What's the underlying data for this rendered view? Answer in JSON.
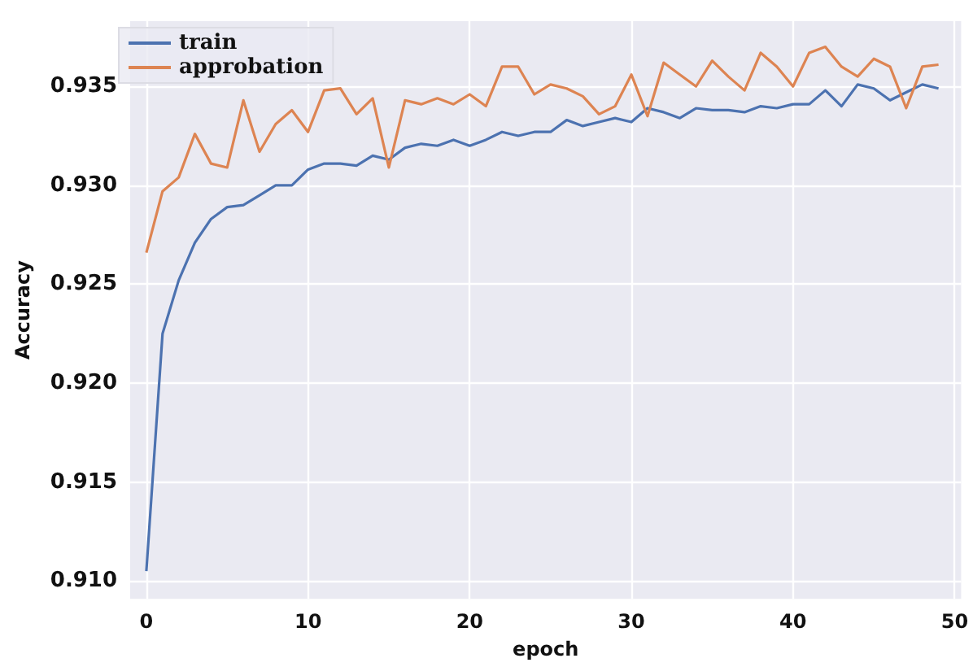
{
  "chart_data": {
    "type": "line",
    "xlabel": "epoch",
    "ylabel": "Accuracy",
    "x": [
      0,
      1,
      2,
      3,
      4,
      5,
      6,
      7,
      8,
      9,
      10,
      11,
      12,
      13,
      14,
      15,
      16,
      17,
      18,
      19,
      20,
      21,
      22,
      23,
      24,
      25,
      26,
      27,
      28,
      29,
      30,
      31,
      32,
      33,
      34,
      35,
      36,
      37,
      38,
      39,
      40,
      41,
      42,
      43,
      44,
      45,
      46,
      47,
      48,
      49
    ],
    "series": [
      {
        "name": "train",
        "color": "#4c72b0",
        "values": [
          0.9105,
          0.9225,
          0.9252,
          0.9271,
          0.9283,
          0.9289,
          0.929,
          0.9295,
          0.93,
          0.93,
          0.9308,
          0.9311,
          0.9311,
          0.931,
          0.9315,
          0.9313,
          0.9319,
          0.9321,
          0.932,
          0.9323,
          0.932,
          0.9323,
          0.9327,
          0.9325,
          0.9327,
          0.9327,
          0.9333,
          0.933,
          0.9332,
          0.9334,
          0.9332,
          0.9339,
          0.9337,
          0.9334,
          0.9339,
          0.9338,
          0.9338,
          0.9337,
          0.934,
          0.9339,
          0.9341,
          0.9341,
          0.9348,
          0.934,
          0.9351,
          0.9349,
          0.9343,
          0.9347,
          0.9351,
          0.9349
        ]
      },
      {
        "name": "approbation",
        "color": "#dd8452",
        "values": [
          0.9266,
          0.9297,
          0.9304,
          0.9326,
          0.9311,
          0.9309,
          0.9343,
          0.9317,
          0.9331,
          0.9338,
          0.9327,
          0.9348,
          0.9349,
          0.9336,
          0.9344,
          0.9309,
          0.9343,
          0.9341,
          0.9344,
          0.9341,
          0.9346,
          0.934,
          0.936,
          0.936,
          0.9346,
          0.9351,
          0.9349,
          0.9345,
          0.9336,
          0.934,
          0.9356,
          0.9335,
          0.9362,
          0.9356,
          0.935,
          0.9363,
          0.9355,
          0.9348,
          0.9367,
          0.936,
          0.935,
          0.9367,
          0.937,
          0.936,
          0.9355,
          0.9364,
          0.936,
          0.9339,
          0.936,
          0.9361
        ]
      }
    ],
    "xlim": [
      -1,
      50.4
    ],
    "ylim": [
      0.9091,
      0.9383
    ],
    "xticks": [
      0,
      10,
      20,
      30,
      40,
      50
    ],
    "yticks": [
      {
        "value": 0.91,
        "label": "0.910"
      },
      0.915,
      {
        "value": 0.92,
        "label": "0.920"
      },
      0.925,
      {
        "value": 0.93,
        "label": "0.930"
      },
      0.935
    ],
    "grid": true,
    "legend": "top left",
    "marker": "none",
    "line_style": "solid"
  }
}
